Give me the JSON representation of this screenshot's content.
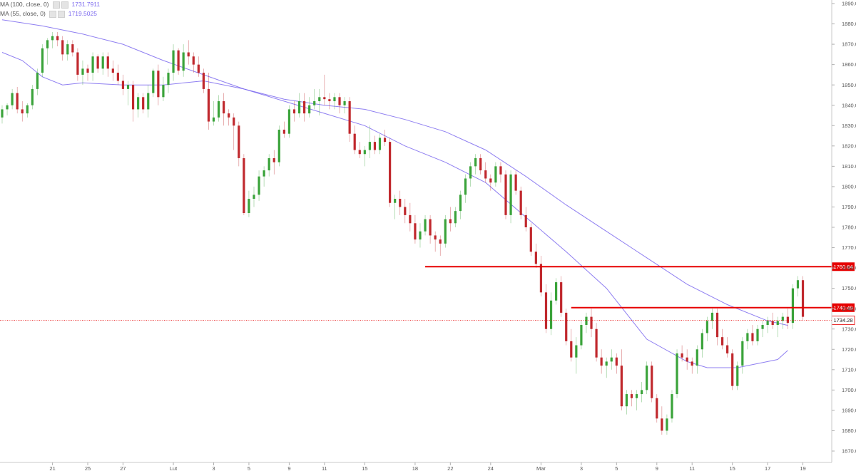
{
  "legend": {
    "ma100": {
      "label": "MA (100, close, 0)",
      "value": "1731.7911",
      "color": "#7b68ee"
    },
    "ma55": {
      "label": "MA (55, close, 0)",
      "value": "1719.5025",
      "color": "#7b68ee"
    }
  },
  "chart_data": {
    "type": "candlestick",
    "title": "",
    "xlabel": "",
    "ylabel": "",
    "ylim": [
      1665,
      1892
    ],
    "y_ticks": [
      "1670.00",
      "1680.00",
      "1690.00",
      "1700.00",
      "1710.00",
      "1720.00",
      "1730.00",
      "1740.00",
      "1750.00",
      "1760.00",
      "1770.00",
      "1780.00",
      "1790.00",
      "1800.00",
      "1810.00",
      "1820.00",
      "1830.00",
      "1840.00",
      "1850.00",
      "1860.00",
      "1870.00",
      "1880.00",
      "1890.00"
    ],
    "x_ticks": [
      {
        "label": "21",
        "i": 10
      },
      {
        "label": "25",
        "i": 17
      },
      {
        "label": "27",
        "i": 24
      },
      {
        "label": "Lut",
        "i": 34
      },
      {
        "label": "3",
        "i": 42
      },
      {
        "label": "5",
        "i": 49
      },
      {
        "label": "9",
        "i": 57
      },
      {
        "label": "11",
        "i": 64
      },
      {
        "label": "15",
        "i": 72
      },
      {
        "label": "18",
        "i": 82
      },
      {
        "label": "22",
        "i": 89
      },
      {
        "label": "24",
        "i": 97
      },
      {
        "label": "Mar",
        "i": 107
      },
      {
        "label": "3",
        "i": 115
      },
      {
        "label": "5",
        "i": 122
      },
      {
        "label": "9",
        "i": 130
      },
      {
        "label": "11",
        "i": 137
      },
      {
        "label": "15",
        "i": 145
      },
      {
        "label": "17",
        "i": 152
      },
      {
        "label": "19",
        "i": 159
      }
    ],
    "candles": [
      [
        1834,
        1840,
        1831,
        1838
      ],
      [
        1838,
        1841,
        1835,
        1840
      ],
      [
        1840,
        1848,
        1838,
        1846
      ],
      [
        1846,
        1849,
        1836,
        1838
      ],
      [
        1838,
        1842,
        1832,
        1836
      ],
      [
        1836,
        1841,
        1834,
        1840
      ],
      [
        1840,
        1850,
        1838,
        1848
      ],
      [
        1848,
        1858,
        1845,
        1856
      ],
      [
        1856,
        1870,
        1854,
        1868
      ],
      [
        1868,
        1873,
        1860,
        1872
      ],
      [
        1872,
        1876,
        1868,
        1874
      ],
      [
        1874,
        1876,
        1869,
        1872
      ],
      [
        1872,
        1874,
        1862,
        1865
      ],
      [
        1865,
        1872,
        1862,
        1870
      ],
      [
        1870,
        1872,
        1864,
        1866
      ],
      [
        1866,
        1868,
        1852,
        1855
      ],
      [
        1855,
        1862,
        1850,
        1858
      ],
      [
        1858,
        1860,
        1852,
        1856
      ],
      [
        1856,
        1866,
        1852,
        1864
      ],
      [
        1864,
        1865,
        1856,
        1858
      ],
      [
        1858,
        1866,
        1855,
        1864
      ],
      [
        1864,
        1866,
        1854,
        1858
      ],
      [
        1858,
        1862,
        1852,
        1856
      ],
      [
        1856,
        1860,
        1850,
        1852
      ],
      [
        1852,
        1855,
        1845,
        1848
      ],
      [
        1848,
        1852,
        1840,
        1850
      ],
      [
        1850,
        1852,
        1832,
        1838
      ],
      [
        1838,
        1846,
        1834,
        1844
      ],
      [
        1844,
        1846,
        1836,
        1838
      ],
      [
        1838,
        1850,
        1834,
        1846
      ],
      [
        1846,
        1858,
        1844,
        1857
      ],
      [
        1857,
        1860,
        1840,
        1844
      ],
      [
        1844,
        1854,
        1842,
        1850
      ],
      [
        1850,
        1858,
        1846,
        1856
      ],
      [
        1856,
        1870,
        1852,
        1867
      ],
      [
        1867,
        1868,
        1855,
        1857
      ],
      [
        1857,
        1870,
        1854,
        1866
      ],
      [
        1866,
        1872,
        1860,
        1864
      ],
      [
        1864,
        1866,
        1856,
        1860
      ],
      [
        1860,
        1864,
        1854,
        1856
      ],
      [
        1856,
        1858,
        1846,
        1848
      ],
      [
        1848,
        1856,
        1828,
        1832
      ],
      [
        1832,
        1842,
        1830,
        1834
      ],
      [
        1834,
        1845,
        1832,
        1842
      ],
      [
        1842,
        1846,
        1830,
        1836
      ],
      [
        1836,
        1838,
        1830,
        1834
      ],
      [
        1834,
        1836,
        1818,
        1830
      ],
      [
        1830,
        1832,
        1810,
        1814
      ],
      [
        1814,
        1816,
        1786,
        1787
      ],
      [
        1787,
        1798,
        1785,
        1794
      ],
      [
        1794,
        1800,
        1790,
        1796
      ],
      [
        1796,
        1808,
        1793,
        1805
      ],
      [
        1805,
        1810,
        1800,
        1808
      ],
      [
        1808,
        1816,
        1805,
        1814
      ],
      [
        1814,
        1818,
        1806,
        1812
      ],
      [
        1812,
        1830,
        1810,
        1828
      ],
      [
        1828,
        1832,
        1824,
        1826
      ],
      [
        1826,
        1840,
        1824,
        1838
      ],
      [
        1838,
        1842,
        1832,
        1836
      ],
      [
        1836,
        1846,
        1834,
        1842
      ],
      [
        1842,
        1846,
        1832,
        1836
      ],
      [
        1836,
        1844,
        1834,
        1840
      ],
      [
        1840,
        1848,
        1838,
        1842
      ],
      [
        1842,
        1848,
        1835,
        1844
      ],
      [
        1844,
        1855,
        1840,
        1843
      ],
      [
        1843,
        1846,
        1838,
        1842
      ],
      [
        1842,
        1846,
        1838,
        1844
      ],
      [
        1844,
        1846,
        1836,
        1840
      ],
      [
        1840,
        1844,
        1836,
        1842
      ],
      [
        1842,
        1844,
        1822,
        1826
      ],
      [
        1826,
        1830,
        1816,
        1818
      ],
      [
        1818,
        1822,
        1814,
        1816
      ],
      [
        1816,
        1820,
        1810,
        1818
      ],
      [
        1818,
        1830,
        1814,
        1822
      ],
      [
        1822,
        1825,
        1816,
        1818
      ],
      [
        1818,
        1826,
        1816,
        1824
      ],
      [
        1824,
        1828,
        1820,
        1822
      ],
      [
        1822,
        1824,
        1790,
        1792
      ],
      [
        1792,
        1796,
        1784,
        1794
      ],
      [
        1794,
        1798,
        1786,
        1790
      ],
      [
        1790,
        1794,
        1782,
        1786
      ],
      [
        1786,
        1792,
        1778,
        1782
      ],
      [
        1782,
        1786,
        1772,
        1774
      ],
      [
        1774,
        1782,
        1770,
        1778
      ],
      [
        1778,
        1786,
        1776,
        1784
      ],
      [
        1784,
        1786,
        1772,
        1776
      ],
      [
        1776,
        1778,
        1768,
        1774
      ],
      [
        1774,
        1776,
        1766,
        1772
      ],
      [
        1772,
        1786,
        1770,
        1784
      ],
      [
        1784,
        1790,
        1778,
        1782
      ],
      [
        1782,
        1790,
        1780,
        1788
      ],
      [
        1788,
        1798,
        1784,
        1796
      ],
      [
        1796,
        1806,
        1792,
        1804
      ],
      [
        1804,
        1812,
        1800,
        1810
      ],
      [
        1810,
        1816,
        1806,
        1814
      ],
      [
        1814,
        1816,
        1806,
        1808
      ],
      [
        1808,
        1812,
        1802,
        1804
      ],
      [
        1804,
        1806,
        1798,
        1802
      ],
      [
        1802,
        1812,
        1800,
        1810
      ],
      [
        1810,
        1812,
        1802,
        1806
      ],
      [
        1806,
        1808,
        1784,
        1786
      ],
      [
        1786,
        1808,
        1782,
        1806
      ],
      [
        1806,
        1808,
        1796,
        1798
      ],
      [
        1798,
        1800,
        1784,
        1786
      ],
      [
        1786,
        1790,
        1778,
        1780
      ],
      [
        1780,
        1782,
        1766,
        1768
      ],
      [
        1768,
        1772,
        1760,
        1762
      ],
      [
        1762,
        1766,
        1746,
        1748
      ],
      [
        1748,
        1752,
        1728,
        1730
      ],
      [
        1730,
        1748,
        1727,
        1744
      ],
      [
        1744,
        1755,
        1742,
        1753
      ],
      [
        1753,
        1756,
        1736,
        1738
      ],
      [
        1738,
        1740,
        1722,
        1724
      ],
      [
        1724,
        1730,
        1714,
        1716
      ],
      [
        1716,
        1726,
        1708,
        1722
      ],
      [
        1722,
        1734,
        1720,
        1732
      ],
      [
        1732,
        1738,
        1728,
        1736
      ],
      [
        1736,
        1740,
        1726,
        1730
      ],
      [
        1730,
        1733,
        1714,
        1716
      ],
      [
        1716,
        1720,
        1708,
        1712
      ],
      [
        1712,
        1716,
        1706,
        1714
      ],
      [
        1714,
        1720,
        1710,
        1716
      ],
      [
        1716,
        1718,
        1708,
        1712
      ],
      [
        1712,
        1720,
        1690,
        1692
      ],
      [
        1692,
        1700,
        1688,
        1698
      ],
      [
        1698,
        1700,
        1692,
        1696
      ],
      [
        1696,
        1700,
        1690,
        1698
      ],
      [
        1698,
        1704,
        1694,
        1700
      ],
      [
        1700,
        1714,
        1698,
        1712
      ],
      [
        1712,
        1714,
        1694,
        1696
      ],
      [
        1696,
        1698,
        1684,
        1686
      ],
      [
        1686,
        1692,
        1678,
        1680
      ],
      [
        1680,
        1688,
        1678,
        1686
      ],
      [
        1686,
        1700,
        1684,
        1698
      ],
      [
        1698,
        1720,
        1696,
        1718
      ],
      [
        1718,
        1722,
        1714,
        1716
      ],
      [
        1716,
        1720,
        1710,
        1714
      ],
      [
        1714,
        1716,
        1708,
        1712
      ],
      [
        1712,
        1722,
        1708,
        1720
      ],
      [
        1720,
        1730,
        1716,
        1728
      ],
      [
        1728,
        1736,
        1724,
        1734
      ],
      [
        1734,
        1740,
        1730,
        1738
      ],
      [
        1738,
        1740,
        1722,
        1726
      ],
      [
        1726,
        1730,
        1720,
        1722
      ],
      [
        1722,
        1726,
        1716,
        1718
      ],
      [
        1718,
        1720,
        1700,
        1702
      ],
      [
        1702,
        1714,
        1700,
        1712
      ],
      [
        1712,
        1726,
        1708,
        1724
      ],
      [
        1724,
        1730,
        1720,
        1728
      ],
      [
        1728,
        1732,
        1722,
        1724
      ],
      [
        1724,
        1732,
        1722,
        1730
      ],
      [
        1730,
        1734,
        1726,
        1732
      ],
      [
        1732,
        1736,
        1728,
        1734
      ],
      [
        1734,
        1738,
        1730,
        1732
      ],
      [
        1732,
        1736,
        1726,
        1734
      ],
      [
        1734,
        1738,
        1730,
        1736
      ],
      [
        1736,
        1740,
        1730,
        1733
      ],
      [
        1733,
        1752,
        1730,
        1750
      ],
      [
        1750,
        1756,
        1746,
        1754
      ],
      [
        1754,
        1756,
        1734,
        1736
      ]
    ],
    "ma100": [
      [
        0,
        1882
      ],
      [
        8,
        1879
      ],
      [
        16,
        1875
      ],
      [
        24,
        1870
      ],
      [
        32,
        1862
      ],
      [
        40,
        1855
      ],
      [
        48,
        1848
      ],
      [
        56,
        1843
      ],
      [
        64,
        1840
      ],
      [
        72,
        1838
      ],
      [
        80,
        1833
      ],
      [
        88,
        1827
      ],
      [
        96,
        1818
      ],
      [
        104,
        1805
      ],
      [
        112,
        1791
      ],
      [
        120,
        1778
      ],
      [
        128,
        1765
      ],
      [
        136,
        1752
      ],
      [
        144,
        1742
      ],
      [
        152,
        1734
      ],
      [
        156,
        1731.8
      ]
    ],
    "ma55": [
      [
        0,
        1866
      ],
      [
        4,
        1862
      ],
      [
        8,
        1854
      ],
      [
        12,
        1850
      ],
      [
        16,
        1851
      ],
      [
        24,
        1850
      ],
      [
        32,
        1850
      ],
      [
        40,
        1852
      ],
      [
        48,
        1848
      ],
      [
        56,
        1842
      ],
      [
        64,
        1836
      ],
      [
        72,
        1830
      ],
      [
        80,
        1820
      ],
      [
        88,
        1812
      ],
      [
        96,
        1802
      ],
      [
        104,
        1785
      ],
      [
        112,
        1768
      ],
      [
        120,
        1750
      ],
      [
        128,
        1725
      ],
      [
        136,
        1714
      ],
      [
        140,
        1711
      ],
      [
        146,
        1711
      ],
      [
        150,
        1713
      ],
      [
        154,
        1715
      ],
      [
        156,
        1719.5
      ]
    ],
    "horizontal_levels": [
      {
        "value": 1760.64,
        "label": "1760.64",
        "start_i": 84,
        "color": "#e60000"
      },
      {
        "value": 1740.49,
        "label": "1740.49",
        "start_i": 113,
        "color": "#e60000"
      }
    ],
    "current_price": {
      "value": 1734.28,
      "label": "1734.28",
      "color": "#e60000"
    },
    "up_color": "#3aa33a",
    "down_color": "#c0282d",
    "ma_color": "#7b68ee",
    "grid": false
  }
}
